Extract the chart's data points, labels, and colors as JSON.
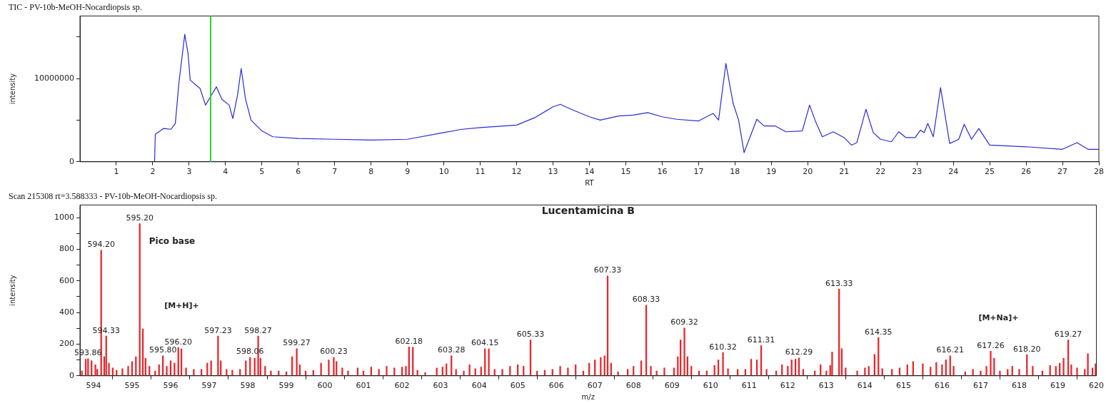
{
  "chart_data": [
    {
      "type": "line",
      "title": "TIC - PV-10b-MeOH-Nocardiopsis sp.",
      "xlabel": "RT",
      "ylabel": "intensity",
      "color": "#2a2ad8",
      "marker": "none",
      "x": [
        2.05,
        2.07,
        2.3,
        2.5,
        2.62,
        2.72,
        2.88,
        2.97,
        3.03,
        3.3,
        3.45,
        3.6,
        3.75,
        3.9,
        4.1,
        4.2,
        4.33,
        4.43,
        4.55,
        4.7,
        5.0,
        5.3,
        6,
        7,
        8,
        9,
        10,
        10.5,
        11,
        12,
        12.5,
        13,
        13.2,
        13.5,
        14,
        14.3,
        14.8,
        15.2,
        15.6,
        16,
        16.4,
        17,
        17.4,
        17.55,
        17.75,
        17.95,
        18.1,
        18.25,
        18.6,
        18.8,
        19.1,
        19.4,
        19.85,
        20.05,
        20.2,
        20.4,
        20.7,
        21.0,
        21.2,
        21.35,
        21.6,
        21.8,
        22.0,
        22.3,
        22.5,
        22.7,
        22.95,
        23.1,
        23.2,
        23.3,
        23.45,
        23.65,
        23.9,
        24.15,
        24.3,
        24.5,
        24.7,
        25.0,
        26,
        27,
        27.4,
        27.7,
        28
      ],
      "values": [
        0,
        3300000,
        4000000,
        3900000,
        4600000,
        9500000,
        15300000,
        13000000,
        9800000,
        8800000,
        6800000,
        7900000,
        9000000,
        7500000,
        6800000,
        5200000,
        8000000,
        11200000,
        7500000,
        5000000,
        3700000,
        3000000,
        2800000,
        2700000,
        2600000,
        2700000,
        3500000,
        3900000,
        4100000,
        4400000,
        5300000,
        6600000,
        6900000,
        6300000,
        5400000,
        5000000,
        5500000,
        5600000,
        5900000,
        5400000,
        5100000,
        4900000,
        5800000,
        5000000,
        11800000,
        7000000,
        5000000,
        1100000,
        5100000,
        4300000,
        4300000,
        3600000,
        3700000,
        6800000,
        5000000,
        3000000,
        3600000,
        2900000,
        2000000,
        2300000,
        6300000,
        3500000,
        2700000,
        2400000,
        3600000,
        2900000,
        2900000,
        3800000,
        3500000,
        4600000,
        3000000,
        8900000,
        2200000,
        2700000,
        4500000,
        2700000,
        4000000,
        2000000,
        1800000,
        1500000,
        2300000,
        1500000,
        1500000
      ],
      "xlim": [
        0,
        28
      ],
      "xticks": [
        1,
        2,
        3,
        4,
        5,
        6,
        7,
        8,
        9,
        10,
        11,
        12,
        13,
        14,
        15,
        16,
        17,
        18,
        19,
        20,
        21,
        22,
        23,
        24,
        25,
        26,
        27,
        28
      ],
      "ylim": [
        0,
        17500000
      ],
      "yticks": [
        0,
        {
          "value": 5000000,
          "label": null
        },
        10000000,
        {
          "value": 15000000,
          "label": null
        }
      ],
      "ref_lines": [
        {
          "axis": "x",
          "value": 3.59,
          "color": "#33cc33"
        }
      ]
    },
    {
      "type": "bar",
      "title": "Scan 215308 rt=3.588333 - PV-10b-MeOH-Nocardiopsis sp.",
      "xlabel": "m/z",
      "ylabel": "intensity",
      "color": "#e8262b",
      "x": [
        593.7,
        593.8,
        593.86,
        593.95,
        594.05,
        594.1,
        594.2,
        594.28,
        594.33,
        594.4,
        594.5,
        594.6,
        594.75,
        594.9,
        595.0,
        595.1,
        595.2,
        595.28,
        595.35,
        595.45,
        595.6,
        595.7,
        595.8,
        595.9,
        596.0,
        596.1,
        596.2,
        596.28,
        596.4,
        596.6,
        596.8,
        596.95,
        597.05,
        597.23,
        597.3,
        597.45,
        597.6,
        597.8,
        597.95,
        598.06,
        598.18,
        598.27,
        598.33,
        598.45,
        598.6,
        598.8,
        599.0,
        599.15,
        599.27,
        599.35,
        599.5,
        599.7,
        599.9,
        600.1,
        600.23,
        600.3,
        600.45,
        600.6,
        600.85,
        601.0,
        601.2,
        601.4,
        601.6,
        601.8,
        602.0,
        602.1,
        602.18,
        602.28,
        602.4,
        602.6,
        602.9,
        603.05,
        603.15,
        603.28,
        603.4,
        603.6,
        603.75,
        603.9,
        604.05,
        604.15,
        604.25,
        604.4,
        604.6,
        604.8,
        605.0,
        605.15,
        605.33,
        605.5,
        605.7,
        605.9,
        606.1,
        606.3,
        606.5,
        606.7,
        606.85,
        607.0,
        607.15,
        607.25,
        607.33,
        607.42,
        607.6,
        607.85,
        608.0,
        608.2,
        608.33,
        608.45,
        608.6,
        608.8,
        609.05,
        609.15,
        609.22,
        609.32,
        609.4,
        609.5,
        609.7,
        609.9,
        610.1,
        610.2,
        610.32,
        610.45,
        610.7,
        610.9,
        611.05,
        611.2,
        611.31,
        611.45,
        611.7,
        611.85,
        612.0,
        612.1,
        612.2,
        612.29,
        612.4,
        612.7,
        612.85,
        613.0,
        613.1,
        613.15,
        613.33,
        613.4,
        613.5,
        613.8,
        614.0,
        614.1,
        614.25,
        614.35,
        614.45,
        614.7,
        614.9,
        615.1,
        615.25,
        615.5,
        615.7,
        615.85,
        616.0,
        616.1,
        616.21,
        616.3,
        616.6,
        616.8,
        617.0,
        617.15,
        617.26,
        617.35,
        617.5,
        617.7,
        617.82,
        618.0,
        618.2,
        618.35,
        618.6,
        618.8,
        618.95,
        619.05,
        619.15,
        619.27,
        619.35,
        619.5,
        619.7,
        619.78,
        619.9,
        619.98
      ],
      "values": [
        30,
        105,
        108,
        95,
        70,
        40,
        794,
        120,
        251,
        80,
        50,
        35,
        45,
        60,
        90,
        120,
        962,
        296,
        110,
        60,
        30,
        70,
        126,
        60,
        95,
        80,
        178,
        170,
        50,
        40,
        40,
        80,
        95,
        251,
        95,
        40,
        35,
        40,
        95,
        116,
        110,
        251,
        110,
        60,
        30,
        30,
        25,
        120,
        171,
        70,
        30,
        35,
        80,
        100,
        116,
        90,
        50,
        30,
        50,
        30,
        55,
        40,
        60,
        50,
        55,
        60,
        183,
        180,
        35,
        20,
        50,
        55,
        75,
        126,
        40,
        30,
        70,
        45,
        55,
        171,
        170,
        40,
        40,
        60,
        70,
        60,
        226,
        30,
        35,
        40,
        60,
        50,
        70,
        30,
        80,
        100,
        115,
        126,
        631,
        80,
        25,
        40,
        60,
        95,
        447,
        60,
        30,
        50,
        50,
        120,
        226,
        302,
        120,
        60,
        30,
        30,
        65,
        100,
        146,
        45,
        40,
        40,
        105,
        100,
        191,
        40,
        30,
        70,
        60,
        100,
        105,
        113,
        40,
        30,
        70,
        30,
        65,
        150,
        548,
        171,
        50,
        30,
        50,
        60,
        135,
        241,
        45,
        40,
        50,
        70,
        90,
        75,
        55,
        85,
        70,
        100,
        126,
        60,
        25,
        40,
        30,
        60,
        156,
        110,
        30,
        40,
        60,
        40,
        133,
        60,
        30,
        65,
        60,
        80,
        110,
        226,
        70,
        50,
        40,
        140,
        50,
        75
      ],
      "annotations": [
        "Lucentamicina B",
        "Pico base",
        "[M+H]+",
        "[M+Na]+",
        {
          "text": "593.86",
          "x": 593.86,
          "y": 108
        },
        {
          "text": "594.20",
          "x": 594.2,
          "y": 794
        },
        {
          "text": "594.33",
          "x": 594.33,
          "y": 251
        },
        {
          "text": "595.20",
          "x": 595.2,
          "y": 962
        },
        {
          "text": "595.80",
          "x": 595.8,
          "y": 126
        },
        {
          "text": "596.20",
          "x": 596.2,
          "y": 178
        },
        {
          "text": "597.23",
          "x": 597.23,
          "y": 251
        },
        {
          "text": "598.06",
          "x": 598.06,
          "y": 116
        },
        {
          "text": "598.27",
          "x": 598.27,
          "y": 251
        },
        {
          "text": "599.27",
          "x": 599.27,
          "y": 171
        },
        {
          "text": "600.23",
          "x": 600.23,
          "y": 116
        },
        {
          "text": "602.18",
          "x": 602.18,
          "y": 183
        },
        {
          "text": "603.28",
          "x": 603.28,
          "y": 126
        },
        {
          "text": "604.15",
          "x": 604.15,
          "y": 171
        },
        {
          "text": "605.33",
          "x": 605.33,
          "y": 226
        },
        {
          "text": "607.33",
          "x": 607.33,
          "y": 631
        },
        {
          "text": "608.33",
          "x": 608.33,
          "y": 447
        },
        {
          "text": "609.32",
          "x": 609.32,
          "y": 302
        },
        {
          "text": "610.32",
          "x": 610.32,
          "y": 146
        },
        {
          "text": "611.31",
          "x": 611.31,
          "y": 191
        },
        {
          "text": "612.29",
          "x": 612.29,
          "y": 113
        },
        {
          "text": "613.33",
          "x": 613.33,
          "y": 548
        },
        {
          "text": "614.35",
          "x": 614.35,
          "y": 241
        },
        {
          "text": "616.21",
          "x": 616.21,
          "y": 126
        },
        {
          "text": "617.26",
          "x": 617.26,
          "y": 156
        },
        {
          "text": "618.20",
          "x": 618.2,
          "y": 133
        },
        {
          "text": "619.27",
          "x": 619.27,
          "y": 226
        }
      ],
      "xlim": [
        593.65,
        620
      ],
      "xticks": [
        594,
        595,
        596,
        597,
        598,
        599,
        600,
        601,
        602,
        603,
        604,
        605,
        606,
        607,
        608,
        609,
        610,
        611,
        612,
        613,
        614,
        615,
        616,
        617,
        618,
        619,
        620
      ],
      "ylim": [
        0,
        1080
      ],
      "yticks": [
        0,
        {
          "value": 100,
          "label": null
        },
        200,
        {
          "value": 300,
          "label": null
        },
        400,
        {
          "value": 500,
          "label": null
        },
        600,
        {
          "value": 700,
          "label": null
        },
        800,
        {
          "value": 900,
          "label": null
        },
        1000
      ]
    }
  ]
}
